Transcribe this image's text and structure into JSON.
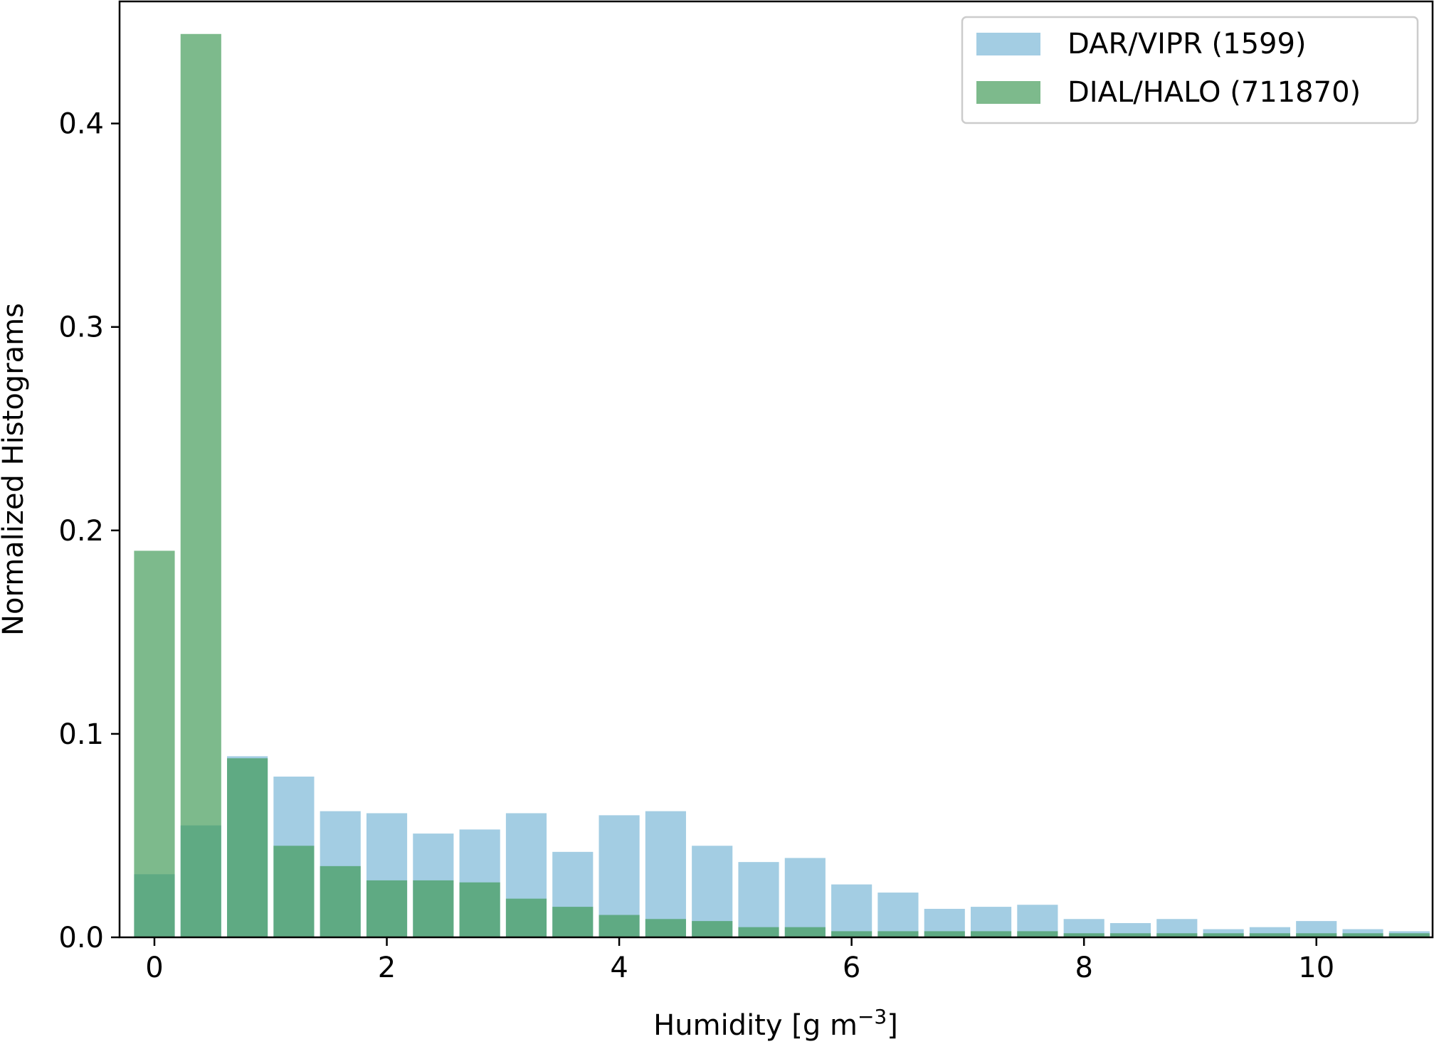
{
  "chart_data": {
    "type": "bar",
    "xlabel": "Humidity [g m",
    "xlabel_unit_exponent": "−3",
    "xlabel_close": "]",
    "ylabel": "Normalized Histograms",
    "xlim": [
      -0.3,
      11.0
    ],
    "ylim": [
      0.0,
      0.46
    ],
    "xticks": [
      0,
      2,
      4,
      6,
      8,
      10
    ],
    "yticks": [
      0.0,
      0.1,
      0.2,
      0.3,
      0.4
    ],
    "xtick_labels": [
      "0",
      "2",
      "4",
      "6",
      "8",
      "10"
    ],
    "ytick_labels": [
      "0.0",
      "0.1",
      "0.2",
      "0.3",
      "0.4"
    ],
    "bin_width": 0.4,
    "bar_width": 0.35,
    "legend_position": "upper right",
    "grid": false,
    "series": [
      {
        "name": "DAR/VIPR (1599)",
        "color": "#9ecae1",
        "opacity": 0.95,
        "x": [
          0.0,
          0.4,
          0.8,
          1.2,
          1.6,
          2.0,
          2.4,
          2.8,
          3.2,
          3.6,
          4.0,
          4.4,
          4.8,
          5.2,
          5.6,
          6.0,
          6.4,
          6.8,
          7.2,
          7.6,
          8.0,
          8.4,
          8.8,
          9.2,
          9.6,
          10.0,
          10.4,
          10.8
        ],
        "values": [
          0.031,
          0.055,
          0.089,
          0.079,
          0.062,
          0.061,
          0.051,
          0.053,
          0.061,
          0.042,
          0.06,
          0.062,
          0.045,
          0.037,
          0.039,
          0.026,
          0.022,
          0.014,
          0.015,
          0.016,
          0.009,
          0.007,
          0.009,
          0.004,
          0.005,
          0.008,
          0.004,
          0.003
        ]
      },
      {
        "name": "DIAL/HALO (711870)",
        "color": "#3f9a56",
        "opacity": 0.68,
        "x": [
          0.0,
          0.4,
          0.8,
          1.2,
          1.6,
          2.0,
          2.4,
          2.8,
          3.2,
          3.6,
          4.0,
          4.4,
          4.8,
          5.2,
          5.6,
          6.0,
          6.4,
          6.8,
          7.2,
          7.6,
          8.0,
          8.4,
          8.8,
          9.2,
          9.6,
          10.0,
          10.4,
          10.8
        ],
        "values": [
          0.19,
          0.444,
          0.088,
          0.045,
          0.035,
          0.028,
          0.028,
          0.027,
          0.019,
          0.015,
          0.011,
          0.009,
          0.008,
          0.005,
          0.005,
          0.003,
          0.003,
          0.003,
          0.003,
          0.003,
          0.002,
          0.002,
          0.002,
          0.002,
          0.002,
          0.002,
          0.002,
          0.002
        ]
      }
    ]
  }
}
